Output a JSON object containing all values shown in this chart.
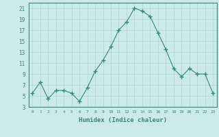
{
  "x": [
    0,
    1,
    2,
    3,
    4,
    5,
    6,
    7,
    8,
    9,
    10,
    11,
    12,
    13,
    14,
    15,
    16,
    17,
    18,
    19,
    20,
    21,
    22,
    23
  ],
  "y": [
    5.5,
    7.5,
    4.5,
    6.0,
    6.0,
    5.5,
    4.0,
    6.5,
    9.5,
    11.5,
    14.0,
    17.0,
    18.5,
    21.0,
    20.5,
    19.5,
    16.5,
    13.5,
    10.0,
    8.5,
    10.0,
    9.0,
    9.0,
    5.5
  ],
  "line_color": "#2e8b77",
  "marker": "D",
  "marker_size": 2,
  "bg_color": "#cceaea",
  "grid_color": "#b0d4d4",
  "xlabel": "Humidex (Indice chaleur)",
  "xlim": [
    -0.5,
    23.5
  ],
  "ylim": [
    3,
    22
  ],
  "yticks": [
    3,
    5,
    7,
    9,
    11,
    13,
    15,
    17,
    19,
    21
  ],
  "xtick_labels": [
    "0",
    "1",
    "2",
    "3",
    "4",
    "5",
    "6",
    "7",
    "8",
    "9",
    "10",
    "11",
    "12",
    "13",
    "14",
    "15",
    "16",
    "17",
    "18",
    "19",
    "20",
    "21",
    "22",
    "23"
  ]
}
